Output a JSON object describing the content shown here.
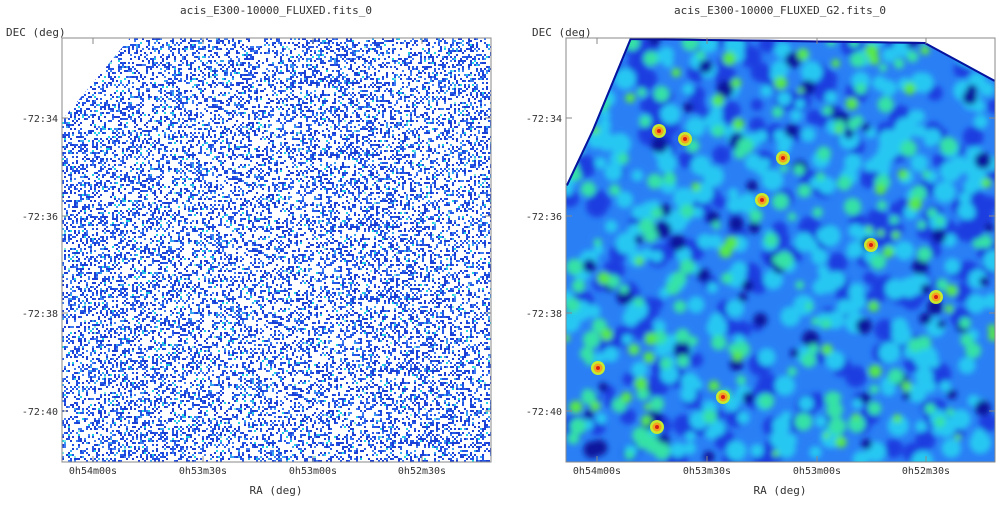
{
  "colors": {
    "frame": "#888888",
    "sparse_pixels": [
      "#1c3fd6",
      "#2456e8",
      "#3f7bf2",
      "#38a6f0",
      "#22d3e6",
      "#7ee9e4"
    ],
    "smooth_colormap": [
      "#08129c",
      "#1a3ee0",
      "#2a7ff5",
      "#27c8f2",
      "#35e2a6",
      "#57e84a",
      "#c6ea2d",
      "#f5a020",
      "#d81e14"
    ]
  },
  "chart_data": [
    {
      "type": "heatmap",
      "title": "acis_E300-10000_FLUXED.fits_0",
      "xlabel": "RA (deg)",
      "ylabel": "DEC (deg)",
      "x_ticks": [
        "0h54m00s",
        "0h53m30s",
        "0h53m00s",
        "0h52m30s"
      ],
      "y_ticks": [
        "-72:34",
        "-72:36",
        "-72:38",
        "-72:40"
      ],
      "style": "sparse",
      "grid": false
    },
    {
      "type": "heatmap",
      "title": "acis_E300-10000_FLUXED_G2.fits_0",
      "xlabel": "RA (deg)",
      "ylabel": "DEC (deg)",
      "x_ticks": [
        "0h54m00s",
        "0h53m30s",
        "0h53m00s",
        "0h52m30s"
      ],
      "y_ticks": [
        "-72:34",
        "-72:36",
        "-72:38",
        "-72:40"
      ],
      "style": "smoothed",
      "grid": false
    }
  ]
}
